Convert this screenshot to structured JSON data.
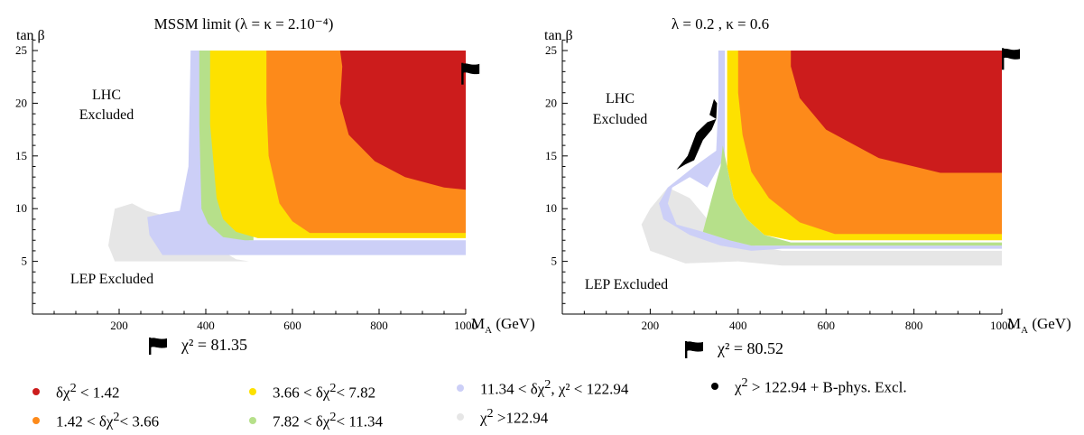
{
  "colors": {
    "red": "#cc1c1c",
    "orange": "#fd8a1a",
    "yellow": "#fde100",
    "green": "#b6e08a",
    "lavender": "#cccff7",
    "gray": "#e6e6e6",
    "black": "#000000"
  },
  "chart_data": [
    {
      "type": "contour-region",
      "title": "MSSM limit (λ = κ = 2.10⁻⁴)",
      "xlabel": "M_A (GeV)",
      "xlabel_main": "M",
      "xlabel_sub": "A",
      "xlabel_unit": " (GeV)",
      "ylabel": "tan β",
      "xlim": [
        0,
        1000
      ],
      "ylim": [
        0,
        26
      ],
      "xticks": [
        200,
        400,
        600,
        800,
        1000
      ],
      "yticks": [
        5,
        10,
        15,
        20,
        25
      ],
      "annotations": [
        "LHC",
        "Excluded",
        "LEP Excluded"
      ],
      "best_fit": {
        "x": 990,
        "y": 22.8,
        "label": "χ² = 81.35"
      },
      "regions": [
        {
          "name": "χ² > 122.94",
          "color": "gray",
          "points": [
            [
              190,
              10
            ],
            [
              230,
              10.5
            ],
            [
              262,
              9.8
            ],
            [
              300,
              9.4
            ],
            [
              360,
              8.3
            ],
            [
              405,
              6.8
            ],
            [
              470,
              5.2
            ],
            [
              500,
              5
            ],
            [
              190,
              5
            ],
            [
              175,
              6.5
            ],
            [
              180,
              7.8
            ]
          ]
        },
        {
          "name": "11.34 < δχ², χ² < 122.94",
          "color": "lavender",
          "points": [
            [
              365,
              25
            ],
            [
              400,
              25
            ],
            [
              410,
              14
            ],
            [
              440,
              8.5
            ],
            [
              500,
              7
            ],
            [
              1000,
              7
            ],
            [
              1000,
              5.6
            ],
            [
              300,
              5.6
            ],
            [
              270,
              7.5
            ],
            [
              265,
              9.2
            ],
            [
              310,
              9.6
            ],
            [
              340,
              9.8
            ],
            [
              360,
              14
            ]
          ]
        },
        {
          "name": "7.82 < δχ² < 11.34",
          "color": "green",
          "points": [
            [
              385,
              25
            ],
            [
              510,
              25
            ],
            [
              510,
              7
            ],
            [
              490,
              7
            ],
            [
              440,
              7.3
            ],
            [
              405,
              8.6
            ],
            [
              390,
              10
            ],
            [
              385,
              18
            ]
          ]
        },
        {
          "name": "3.66 < δχ² < 7.82",
          "color": "yellow",
          "points": [
            [
              410,
              25
            ],
            [
              1000,
              25
            ],
            [
              1000,
              7.2
            ],
            [
              520,
              7.2
            ],
            [
              470,
              7.8
            ],
            [
              440,
              9
            ],
            [
              425,
              11
            ],
            [
              410,
              18
            ]
          ]
        },
        {
          "name": "1.42 < δχ² < 3.66",
          "color": "orange",
          "points": [
            [
              540,
              25
            ],
            [
              1000,
              25
            ],
            [
              1000,
              7.7
            ],
            [
              640,
              7.7
            ],
            [
              600,
              8.8
            ],
            [
              570,
              10.5
            ],
            [
              545,
              15
            ],
            [
              540,
              20
            ]
          ]
        },
        {
          "name": "δχ² < 1.42",
          "color": "red",
          "points": [
            [
              710,
              25
            ],
            [
              1000,
              25
            ],
            [
              1000,
              11.8
            ],
            [
              950,
              12
            ],
            [
              860,
              13
            ],
            [
              790,
              14.5
            ],
            [
              730,
              17
            ],
            [
              710,
              20
            ],
            [
              715,
              23.5
            ]
          ]
        }
      ]
    },
    {
      "type": "contour-region",
      "title": "λ = 0.2 ,   κ = 0.6",
      "xlabel": "M_A (GeV)",
      "xlabel_main": "M",
      "xlabel_sub": "A",
      "xlabel_unit": " (GeV)",
      "ylabel": "tan β",
      "xlim": [
        0,
        1000
      ],
      "ylim": [
        0,
        26
      ],
      "xticks": [
        200,
        400,
        600,
        800,
        1000
      ],
      "yticks": [
        5,
        10,
        15,
        20,
        25
      ],
      "annotations": [
        "LHC",
        "Excluded",
        "LEP Excluded"
      ],
      "best_fit": {
        "x": 1000,
        "y": 24.2,
        "label": "χ² = 80.52"
      },
      "regions": [
        {
          "name": "χ² > 122.94",
          "color": "gray",
          "points": [
            [
              240,
              12
            ],
            [
              200,
              10
            ],
            [
              180,
              8.5
            ],
            [
              200,
              6
            ],
            [
              280,
              4.8
            ],
            [
              400,
              5
            ],
            [
              500,
              4.6
            ],
            [
              1000,
              4.6
            ],
            [
              1000,
              6
            ],
            [
              500,
              6
            ],
            [
              400,
              6.8
            ],
            [
              330,
              9
            ],
            [
              290,
              11
            ]
          ]
        },
        {
          "name": "11.34 < δχ², χ² < 122.94",
          "color": "lavender",
          "points": [
            [
              355,
              25
            ],
            [
              370,
              25
            ],
            [
              370,
              15
            ],
            [
              330,
              12
            ],
            [
              290,
              13
            ],
            [
              250,
              12
            ],
            [
              240,
              10.5
            ],
            [
              260,
              8.5
            ],
            [
              320,
              7.8
            ],
            [
              380,
              7
            ],
            [
              430,
              6.5
            ],
            [
              1000,
              6.5
            ],
            [
              1000,
              6.2
            ],
            [
              500,
              6.2
            ],
            [
              430,
              6
            ],
            [
              360,
              6.5
            ],
            [
              290,
              7.5
            ],
            [
              230,
              9
            ],
            [
              220,
              10.5
            ],
            [
              240,
              12
            ],
            [
              300,
              14
            ],
            [
              350,
              15.5
            ],
            [
              355,
              20
            ]
          ]
        },
        {
          "name": "7.82 < δχ² < 11.34",
          "color": "green",
          "points": [
            [
              365,
              16
            ],
            [
              375,
              14
            ],
            [
              390,
              11
            ],
            [
              420,
              9
            ],
            [
              460,
              7.5
            ],
            [
              520,
              6.8
            ],
            [
              1000,
              6.8
            ],
            [
              1000,
              6.5
            ],
            [
              430,
              6.5
            ],
            [
              380,
              7
            ],
            [
              320,
              7.8
            ],
            [
              340,
              11
            ],
            [
              360,
              14
            ]
          ]
        },
        {
          "name": "3.66 < δχ² < 7.82",
          "color": "yellow",
          "points": [
            [
              375,
              25
            ],
            [
              1000,
              25
            ],
            [
              1000,
              7
            ],
            [
              520,
              7
            ],
            [
              460,
              7.5
            ],
            [
              420,
              9
            ],
            [
              390,
              11
            ],
            [
              375,
              14
            ]
          ]
        },
        {
          "name": "1.42 < δχ² < 3.66",
          "color": "orange",
          "points": [
            [
              400,
              25
            ],
            [
              1000,
              25
            ],
            [
              1000,
              7.6
            ],
            [
              620,
              7.6
            ],
            [
              540,
              8.7
            ],
            [
              470,
              11
            ],
            [
              430,
              13.5
            ],
            [
              410,
              17
            ],
            [
              400,
              21
            ]
          ]
        },
        {
          "name": "δχ² < 1.42",
          "color": "red",
          "points": [
            [
              520,
              25
            ],
            [
              1000,
              25
            ],
            [
              1000,
              13.4
            ],
            [
              860,
              13.4
            ],
            [
              720,
              14.8
            ],
            [
              600,
              17.5
            ],
            [
              540,
              20.5
            ],
            [
              520,
              23.5
            ]
          ]
        },
        {
          "name": "χ² > 122.94 + B-phys. Excl.",
          "color": "black",
          "points": [
            [
              350,
              18.5
            ],
            [
              340,
              17.5
            ],
            [
              320,
              16.5
            ],
            [
              300,
              14.6
            ],
            [
              280,
              14.2
            ],
            [
              260,
              13.7
            ],
            [
              285,
              15
            ],
            [
              305,
              17.2
            ],
            [
              330,
              18.2
            ]
          ]
        },
        {
          "name": "χ² > 122.94 + B-phys. Excl.",
          "color": "black",
          "points": [
            [
              350,
              18.5
            ],
            [
              352,
              20
            ],
            [
              345,
              20.4
            ],
            [
              335,
              18.9
            ]
          ]
        }
      ]
    }
  ],
  "legend": [
    {
      "color": "red",
      "prefix": "δχ",
      "sup": "2",
      "suffix": " < 1.42"
    },
    {
      "color": "orange",
      "prefix": "1.42 < δχ",
      "sup": "2",
      "suffix": "< 3.66"
    },
    {
      "color": "yellow",
      "prefix": "3.66 < δχ",
      "sup": "2",
      "suffix": "< 7.82"
    },
    {
      "color": "green",
      "prefix": "7.82 < δχ",
      "sup": "2",
      "suffix": "< 11.34"
    },
    {
      "color": "lavender",
      "prefix": "11.34 < δχ",
      "sup": "2",
      "suffix": ",  χ² < 122.94"
    },
    {
      "color": "gray",
      "prefix": "χ",
      "sup": "2",
      "suffix": " >122.94"
    },
    {
      "color": "black",
      "prefix": "χ",
      "sup": "2",
      "suffix": " > 122.94 + B-phys. Excl."
    }
  ]
}
